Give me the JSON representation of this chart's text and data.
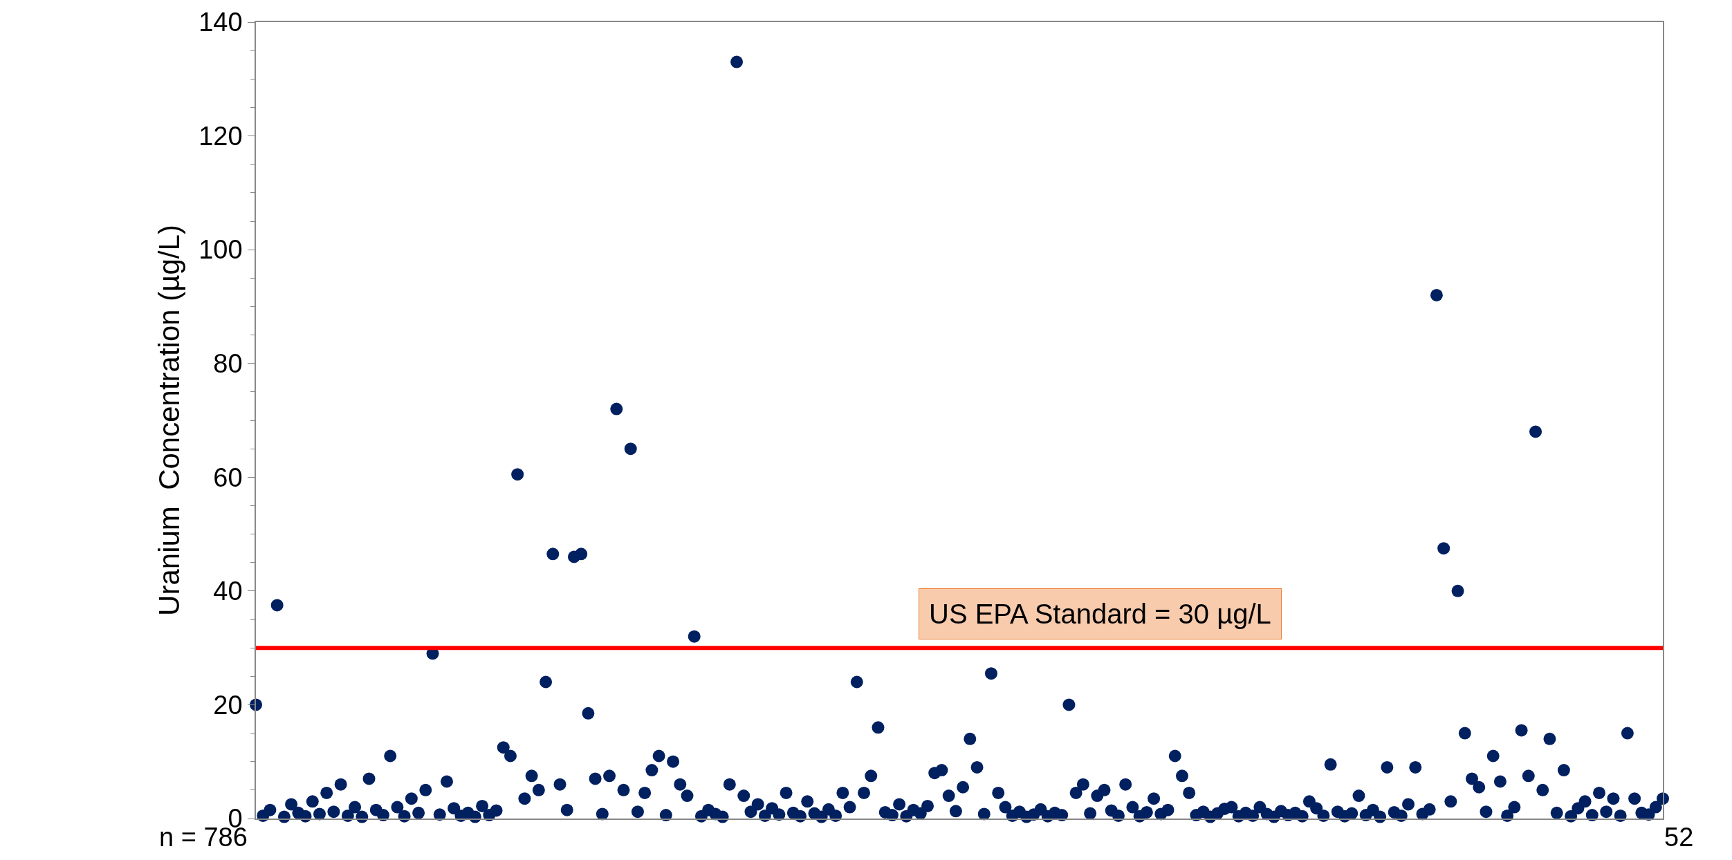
{
  "chart_data": {
    "type": "scatter",
    "ylabel": "Uranium  Concentration (µg/L)",
    "categories": [
      null,
      null,
      null,
      null,
      null,
      null,
      null,
      null,
      null,
      null,
      null,
      null,
      null,
      null,
      null,
      null,
      null,
      null,
      null,
      null,
      null,
      null,
      null,
      null,
      null,
      null,
      null,
      null,
      null,
      null,
      null,
      null,
      null,
      null,
      null,
      null,
      null,
      null,
      null,
      null,
      null,
      null,
      null,
      null,
      null,
      null,
      null,
      null,
      null,
      null,
      null,
      null,
      null,
      null,
      null,
      null,
      null,
      null,
      null,
      null,
      null,
      null,
      null,
      null,
      null,
      null,
      null,
      null,
      null,
      null,
      null,
      null,
      null,
      null,
      null,
      null,
      null,
      null,
      null,
      null,
      null,
      null,
      null,
      null,
      null,
      null,
      null,
      null,
      null,
      null,
      null,
      null,
      null,
      null,
      null,
      null,
      null,
      null,
      null,
      null,
      null,
      null,
      null,
      null,
      null,
      null,
      null,
      null,
      null,
      null,
      null,
      null,
      null,
      null,
      null,
      null,
      null,
      null,
      null,
      null,
      null,
      null,
      null,
      null,
      null,
      null,
      null,
      null,
      null,
      null,
      null,
      null,
      null,
      null,
      null,
      null,
      null,
      null,
      null,
      null,
      null,
      null,
      null,
      null,
      null,
      null,
      null,
      null,
      null,
      null,
      null,
      null,
      null,
      null,
      null,
      null,
      null,
      null,
      null,
      null,
      null,
      null,
      null,
      null,
      null,
      null,
      null,
      null,
      null,
      null,
      null,
      null,
      null,
      null,
      null,
      null,
      null,
      null,
      null,
      null,
      null,
      null,
      null,
      null,
      null,
      null,
      null,
      null,
      null,
      null,
      null,
      null,
      null,
      null,
      null,
      null,
      null,
      null,
      null,
      null
    ],
    "series": [
      {
        "color": "#002060",
        "values": [
          20,
          0.5,
          1.5,
          37.5,
          0.3,
          2.5,
          1,
          0.4,
          3,
          0.8,
          4.5,
          1.2,
          6,
          0.5,
          2,
          0.3,
          7,
          1.5,
          0.6,
          11,
          2,
          0.4,
          3.5,
          1,
          5,
          29,
          0.7,
          6.5,
          1.8,
          0.5,
          1,
          0.3,
          2.2,
          0.6,
          1.4,
          12.5,
          11,
          60.5,
          3.5,
          7.5,
          5,
          24,
          46.5,
          6,
          1.5,
          46,
          46.5,
          18.5,
          7,
          0.8,
          7.5,
          72,
          5,
          65,
          1.2,
          4.5,
          8.5,
          11,
          0.6,
          10,
          6,
          4,
          32,
          0.4,
          1.5,
          0.8,
          0.3,
          6,
          133,
          4,
          1.2,
          2.5,
          0.5,
          1.8,
          0.7,
          4.5,
          1,
          0.4,
          3,
          0.9,
          0.3,
          1.6,
          0.5,
          4.5,
          2,
          24,
          4.5,
          7.5,
          16,
          1.1,
          0.6,
          2.5,
          0.4,
          1.5,
          0.9,
          2.2,
          8,
          8.5,
          4,
          1.3,
          5.5,
          14,
          9,
          0.8,
          25.5,
          4.5,
          2,
          0.5,
          1.2,
          0.3,
          0.7,
          1.6,
          0.4,
          1,
          0.6,
          20,
          4.5,
          6,
          0.9,
          4,
          5,
          1.4,
          0.5,
          6,
          2,
          0.4,
          1.1,
          3.5,
          0.8,
          1.5,
          11,
          7.5,
          4.5,
          0.6,
          1.2,
          0.3,
          0.9,
          1.7,
          2,
          0.4,
          1,
          0.5,
          2,
          0.8,
          0.3,
          1.3,
          0.6,
          1,
          0.4,
          3,
          1.8,
          0.5,
          9.5,
          1.2,
          0.4,
          0.9,
          4,
          0.6,
          1.5,
          0.3,
          9,
          1.1,
          0.5,
          2.5,
          9,
          0.8,
          1.6,
          92,
          47.5,
          3,
          40,
          15,
          7,
          5.5,
          1.2,
          11,
          6.5,
          0.5,
          2,
          15.5,
          7.5,
          68,
          5,
          14,
          1,
          8.5,
          0.4,
          1.8,
          3,
          0.6,
          4.5,
          1.2,
          3.5,
          0.5,
          15,
          3.5,
          1,
          0.7,
          2,
          3.5
        ]
      }
    ],
    "ylim": [
      0,
      140
    ],
    "yticks": [
      0,
      20,
      40,
      60,
      80,
      100,
      120,
      140
    ],
    "ref_lines": [
      {
        "axis": "y",
        "value": 30,
        "label": "US EPA Standard = 30 µg/L",
        "color": "#ff0000"
      }
    ],
    "annotations": [
      "n = 786",
      "52"
    ],
    "marker": "circle",
    "tick_labels": "y"
  }
}
